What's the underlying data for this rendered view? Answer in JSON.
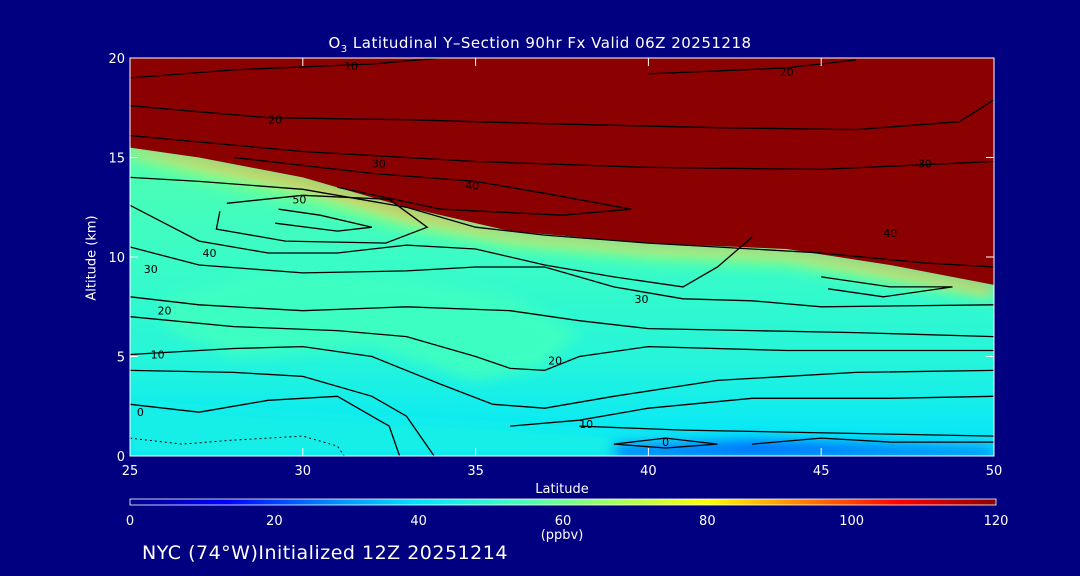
{
  "chart_data": {
    "type": "heatmap",
    "title_prefix": "O",
    "title_sub": "3",
    "title_rest": " Latitudinal Y–Section 90hr  Fx Valid 06Z 20251218",
    "xlabel": "Latitude",
    "ylabel": "Altitude (km)",
    "xlim": [
      25,
      50
    ],
    "ylim": [
      0,
      20
    ],
    "xticks": [
      25,
      30,
      35,
      40,
      45,
      50
    ],
    "yticks": [
      0,
      5,
      10,
      15,
      20
    ],
    "colorbar": {
      "label": "(ppbv)",
      "range": [
        0,
        120
      ],
      "ticks": [
        0,
        20,
        40,
        60,
        80,
        100,
        120
      ],
      "stops": [
        "#00008b",
        "#0000ff",
        "#0080ff",
        "#00e5ff",
        "#40ffc0",
        "#a0ff60",
        "#ffff00",
        "#ff8000",
        "#ff0000",
        "#8b0000"
      ]
    },
    "field_regions": [
      {
        "name": "stratosphere",
        "value": 120,
        "boundary": [
          [
            25,
            15.5
          ],
          [
            27,
            15.0
          ],
          [
            30,
            14.0
          ],
          [
            33,
            12.5
          ],
          [
            36,
            11.3
          ],
          [
            40,
            10.7
          ],
          [
            44,
            10.4
          ],
          [
            47,
            9.6
          ],
          [
            50,
            8.6
          ],
          [
            50,
            20
          ],
          [
            25,
            20
          ]
        ]
      },
      {
        "name": "tropopause-gradient",
        "value": 90,
        "boundary": [
          [
            25,
            15.3
          ],
          [
            27,
            14.6
          ],
          [
            30,
            13.5
          ],
          [
            33,
            12.0
          ],
          [
            36,
            11.0
          ],
          [
            40,
            10.4
          ],
          [
            44,
            10.1
          ],
          [
            47,
            9.2
          ],
          [
            50,
            8.2
          ],
          [
            50,
            8.6
          ],
          [
            47,
            9.6
          ],
          [
            44,
            10.4
          ],
          [
            40,
            10.7
          ],
          [
            36,
            11.3
          ],
          [
            33,
            12.5
          ],
          [
            30,
            14.0
          ],
          [
            27,
            15.0
          ],
          [
            25,
            15.5
          ]
        ]
      },
      {
        "name": "upper-troposphere",
        "value": 60,
        "boundary": [
          [
            25,
            14.9
          ],
          [
            27,
            13.8
          ],
          [
            30,
            12.6
          ],
          [
            33,
            11.3
          ],
          [
            36,
            10.4
          ],
          [
            40,
            9.8
          ],
          [
            44,
            9.5
          ],
          [
            47,
            8.6
          ],
          [
            50,
            7.8
          ],
          [
            50,
            8.2
          ],
          [
            47,
            9.2
          ],
          [
            44,
            10.1
          ],
          [
            40,
            10.4
          ],
          [
            36,
            11.0
          ],
          [
            33,
            12.0
          ],
          [
            30,
            13.5
          ],
          [
            27,
            14.6
          ],
          [
            25,
            15.3
          ]
        ]
      },
      {
        "name": "mid-troposphere-bulge",
        "value": 53,
        "boundary": [
          [
            26,
            8
          ],
          [
            29,
            9.4
          ],
          [
            33,
            9.0
          ],
          [
            36,
            8.0
          ],
          [
            38,
            6.2
          ],
          [
            37,
            4.5
          ],
          [
            35,
            3.8
          ],
          [
            32,
            5.5
          ],
          [
            28,
            5.0
          ],
          [
            26,
            6.5
          ]
        ]
      },
      {
        "name": "boundary-layer",
        "value": 45,
        "boundary": [
          [
            25,
            2.6
          ],
          [
            30,
            2.0
          ],
          [
            35,
            1.6
          ],
          [
            40,
            1.0
          ],
          [
            45,
            0.8
          ],
          [
            50,
            0.8
          ],
          [
            50,
            0
          ],
          [
            25,
            0
          ]
        ]
      },
      {
        "name": "surface-low",
        "value": 22,
        "boundary": [
          [
            39,
            0.6
          ],
          [
            43,
            0.8
          ],
          [
            47,
            0.6
          ],
          [
            50,
            0.5
          ],
          [
            50,
            0
          ],
          [
            39,
            0
          ]
        ]
      }
    ],
    "contours": [
      {
        "value": 10,
        "points": [
          [
            25,
            19.0
          ],
          [
            28,
            19.4
          ],
          [
            32,
            19.7
          ],
          [
            34,
            20.0
          ]
        ]
      },
      {
        "value": 20,
        "points": [
          [
            40,
            19.2
          ],
          [
            44,
            19.5
          ],
          [
            46,
            19.9
          ]
        ]
      },
      {
        "value": 20,
        "points": [
          [
            25,
            17.6
          ],
          [
            29,
            17.0
          ],
          [
            33,
            16.9
          ],
          [
            37,
            16.7
          ],
          [
            42,
            16.5
          ],
          [
            46,
            16.4
          ],
          [
            49,
            16.8
          ],
          [
            50,
            17.9
          ]
        ]
      },
      {
        "value": 30,
        "points": [
          [
            25,
            16.1
          ],
          [
            30,
            15.3
          ],
          [
            35,
            14.8
          ],
          [
            40,
            14.5
          ],
          [
            45,
            14.4
          ],
          [
            50,
            14.8
          ]
        ]
      },
      {
        "value": 40,
        "points": [
          [
            28,
            15.0
          ],
          [
            32,
            14.2
          ],
          [
            35,
            13.8
          ],
          [
            37,
            13.2
          ],
          [
            39.5,
            12.4
          ],
          [
            37.5,
            12.1
          ],
          [
            34,
            12.4
          ],
          [
            31,
            13.5
          ]
        ]
      },
      {
        "value": 50,
        "points": [
          [
            27.8,
            12.7
          ],
          [
            30,
            13.1
          ],
          [
            32.5,
            12.9
          ],
          [
            33.6,
            11.5
          ],
          [
            32.4,
            10.7
          ],
          [
            29.5,
            10.8
          ],
          [
            27.5,
            11.4
          ],
          [
            27.6,
            12.3
          ]
        ]
      },
      {
        "value": 60,
        "points": [
          [
            29.3,
            12.4
          ],
          [
            30.5,
            12.1
          ],
          [
            32,
            11.5
          ],
          [
            31,
            11.3
          ],
          [
            29.2,
            11.7
          ]
        ]
      },
      {
        "value": 30,
        "points": [
          [
            25,
            14.0
          ],
          [
            27,
            13.8
          ],
          [
            30,
            13.4
          ],
          [
            33,
            12.5
          ],
          [
            35,
            11.5
          ],
          [
            37,
            11.1
          ],
          [
            40,
            10.7
          ],
          [
            42,
            10.5
          ],
          [
            45,
            10.2
          ],
          [
            48,
            9.7
          ],
          [
            50,
            9.5
          ]
        ]
      },
      {
        "value": 40,
        "points": [
          [
            45,
            9.0
          ],
          [
            47,
            8.5
          ],
          [
            48.8,
            8.5
          ],
          [
            46.8,
            8.0
          ],
          [
            45.2,
            8.4
          ]
        ]
      },
      {
        "value": 40,
        "points": [
          [
            25,
            12.6
          ],
          [
            27,
            10.8
          ],
          [
            29,
            10.2
          ],
          [
            31,
            10.2
          ],
          [
            33,
            10.6
          ],
          [
            35,
            10.4
          ],
          [
            37,
            9.6
          ],
          [
            39,
            9.0
          ],
          [
            41,
            8.5
          ],
          [
            42,
            9.5
          ],
          [
            43,
            11.0
          ]
        ]
      },
      {
        "value": 30,
        "points": [
          [
            25,
            10.5
          ],
          [
            27,
            9.6
          ],
          [
            30,
            9.2
          ],
          [
            33,
            9.3
          ],
          [
            35,
            9.5
          ],
          [
            37,
            9.5
          ],
          [
            39,
            8.5
          ],
          [
            41,
            7.9
          ],
          [
            43,
            7.8
          ],
          [
            45,
            7.5
          ],
          [
            50,
            7.6
          ]
        ]
      },
      {
        "value": 20,
        "points": [
          [
            25,
            8.0
          ],
          [
            27,
            7.6
          ],
          [
            30,
            7.3
          ],
          [
            33,
            7.5
          ],
          [
            36,
            7.3
          ],
          [
            38,
            6.8
          ],
          [
            40,
            6.4
          ],
          [
            43,
            6.3
          ],
          [
            46,
            6.2
          ],
          [
            50,
            6.0
          ]
        ]
      },
      {
        "value": 20,
        "points": [
          [
            25,
            7.0
          ],
          [
            28,
            6.5
          ],
          [
            31,
            6.3
          ],
          [
            33,
            6.0
          ],
          [
            35,
            5.0
          ],
          [
            36,
            4.4
          ],
          [
            37,
            4.3
          ],
          [
            38,
            5.0
          ],
          [
            40,
            5.5
          ],
          [
            44,
            5.3
          ],
          [
            50,
            5.3
          ]
        ]
      },
      {
        "value": 10,
        "points": [
          [
            25,
            5.1
          ],
          [
            28,
            5.4
          ],
          [
            30,
            5.5
          ],
          [
            32,
            5.0
          ],
          [
            34,
            3.6
          ],
          [
            35.5,
            2.6
          ],
          [
            37,
            2.4
          ],
          [
            39,
            3.0
          ],
          [
            42,
            3.8
          ],
          [
            46,
            4.2
          ],
          [
            50,
            4.3
          ]
        ]
      },
      {
        "value": 10,
        "points": [
          [
            25,
            4.3
          ],
          [
            28,
            4.2
          ],
          [
            30,
            4.0
          ],
          [
            32,
            3.0
          ],
          [
            33,
            2.0
          ],
          [
            33.8,
            0.0
          ]
        ]
      },
      {
        "value": 0,
        "points": [
          [
            25,
            2.6
          ],
          [
            27,
            2.2
          ],
          [
            29,
            2.8
          ],
          [
            31,
            3.0
          ],
          [
            32.5,
            1.5
          ],
          [
            32.8,
            0.0
          ]
        ]
      },
      {
        "value": 10,
        "points": [
          [
            36,
            1.5
          ],
          [
            38,
            1.8
          ],
          [
            40,
            2.4
          ],
          [
            43,
            2.9
          ],
          [
            47,
            2.9
          ],
          [
            50,
            3.0
          ]
        ]
      },
      {
        "value": 10,
        "points": [
          [
            38,
            1.5
          ],
          [
            41,
            1.3
          ],
          [
            44,
            1.2
          ],
          [
            47,
            1.1
          ],
          [
            50,
            1.0
          ]
        ]
      },
      {
        "value": 0,
        "points": [
          [
            39,
            0.6
          ],
          [
            40.5,
            0.9
          ],
          [
            42,
            0.6
          ],
          [
            40.5,
            0.4
          ],
          [
            39,
            0.6
          ]
        ]
      },
      {
        "value": 0,
        "points": [
          [
            43,
            0.6
          ],
          [
            45,
            0.9
          ],
          [
            47,
            0.7
          ],
          [
            50,
            0.7
          ]
        ]
      }
    ],
    "contour_labels": [
      {
        "text": "10",
        "x": 31.4,
        "y": 19.6
      },
      {
        "text": "20",
        "x": 44.0,
        "y": 19.3
      },
      {
        "text": "20",
        "x": 29.2,
        "y": 16.9
      },
      {
        "text": "30",
        "x": 32.2,
        "y": 14.7
      },
      {
        "text": "30",
        "x": 48.0,
        "y": 14.7
      },
      {
        "text": "40",
        "x": 34.9,
        "y": 13.6
      },
      {
        "text": "50",
        "x": 29.9,
        "y": 12.9
      },
      {
        "text": "40",
        "x": 47.0,
        "y": 11.2
      },
      {
        "text": "40",
        "x": 27.3,
        "y": 10.2
      },
      {
        "text": "30",
        "x": 25.6,
        "y": 9.4
      },
      {
        "text": "30",
        "x": 39.8,
        "y": 7.9
      },
      {
        "text": "20",
        "x": 26.0,
        "y": 7.3
      },
      {
        "text": "20",
        "x": 37.3,
        "y": 4.8
      },
      {
        "text": "10",
        "x": 25.8,
        "y": 5.1
      },
      {
        "text": "10",
        "x": 38.2,
        "y": 1.6
      },
      {
        "text": "0",
        "x": 25.3,
        "y": 2.2
      },
      {
        "text": "0",
        "x": 40.5,
        "y": 0.7
      }
    ],
    "dotted_contours": [
      {
        "points": [
          [
            25,
            0.9
          ],
          [
            26.5,
            0.6
          ],
          [
            28,
            0.8
          ],
          [
            30,
            1.0
          ],
          [
            31,
            0.5
          ],
          [
            31.2,
            0.0
          ]
        ]
      }
    ]
  },
  "footer": "NYC (74°W)Initialized 12Z 20251214"
}
